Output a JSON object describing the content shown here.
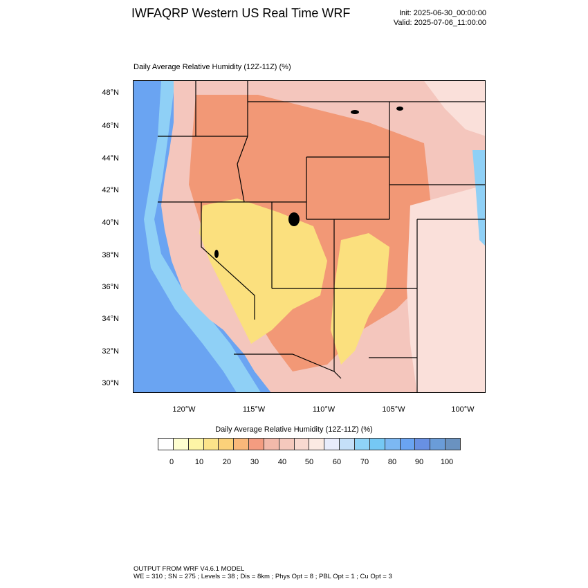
{
  "header": {
    "title": "IWFAQRP Western US Real Time WRF",
    "init": "Init: 2025-06-30_00:00:00",
    "valid": "Valid: 2025-07-06_11:00:00"
  },
  "map": {
    "title": "Daily Average Relative Humidity (12Z-11Z)   (%)",
    "lat_labels": [
      "48°N",
      "46°N",
      "44°N",
      "42°N",
      "40°N",
      "38°N",
      "36°N",
      "34°N",
      "32°N",
      "30°N"
    ],
    "lon_labels": [
      "120°W",
      "115°W",
      "110°W",
      "105°W",
      "100°W"
    ],
    "colors": {
      "ocean": "#6aa4f2",
      "ocean_coast": "#8fd0f6",
      "land_moist": "#f4c6bd",
      "land_dry": "#f29876",
      "desert": "#fbe07e",
      "plains_humid": "#fae0da",
      "gulf_humid": "#8fd0f6"
    }
  },
  "colorbar": {
    "title": "Daily Average Relative Humidity (12Z-11Z)  (%)",
    "labels": [
      "0",
      "10",
      "20",
      "30",
      "40",
      "50",
      "60",
      "70",
      "80",
      "90",
      "100"
    ],
    "colors": [
      "#ffffff",
      "#fefed0",
      "#fdf5a6",
      "#fce48a",
      "#fbd17a",
      "#f9b87a",
      "#f49c80",
      "#f2b9aa",
      "#f5c9bd",
      "#f8d9d0",
      "#fbeae3",
      "#e8ecfc",
      "#c5e0f9",
      "#8fd3f7",
      "#75c8f4",
      "#7cb8f3",
      "#6aa4f2",
      "#6890e3",
      "#6a9cd8",
      "#6a92c0"
    ]
  },
  "footer": {
    "line1": "OUTPUT FROM WRF V4.6.1 MODEL",
    "line2": "WE = 310 ; SN = 275 ; Levels = 38 ; Dis = 8km ; Phys Opt = 8 ; PBL Opt = 1 ; Cu Opt = 3"
  }
}
